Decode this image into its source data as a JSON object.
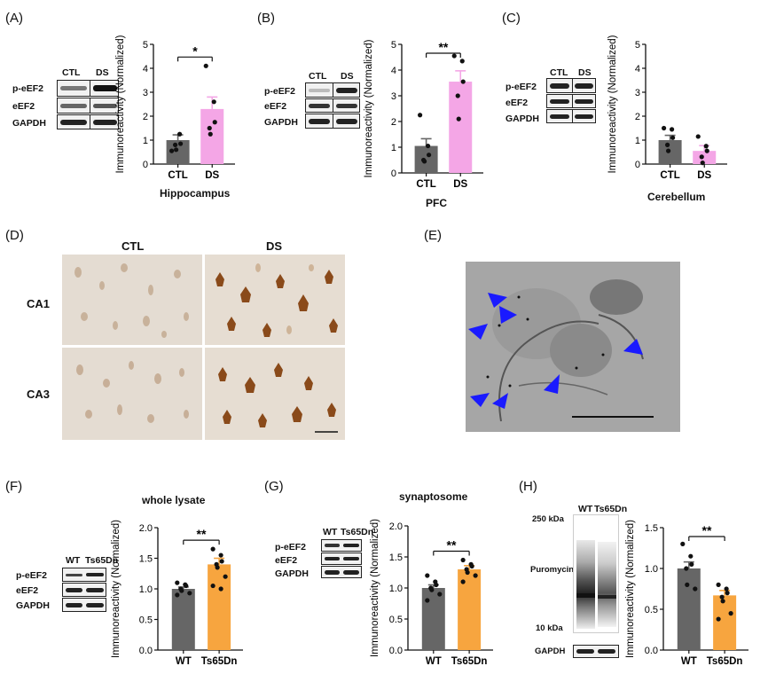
{
  "panels": {
    "A": {
      "label": "(A)",
      "subtitle": "Hippocampus",
      "blot_cols": [
        "CTL",
        "DS"
      ],
      "blot_rows": [
        "p-eEF2",
        "eEF2",
        "GAPDH"
      ]
    },
    "B": {
      "label": "(B)",
      "subtitle": "PFC",
      "blot_cols": [
        "CTL",
        "DS"
      ],
      "blot_rows": [
        "p-eEF2",
        "eEF2",
        "GAPDH"
      ]
    },
    "C": {
      "label": "(C)",
      "subtitle": "Cerebellum",
      "blot_cols": [
        "CTL",
        "DS"
      ],
      "blot_rows": [
        "p-eEF2",
        "eEF2",
        "GAPDH"
      ]
    },
    "D": {
      "label": "(D)",
      "col_labels": [
        "CTL",
        "DS"
      ],
      "row_labels": [
        "CA1",
        "CA3"
      ]
    },
    "E": {
      "label": "(E)"
    },
    "F": {
      "label": "(F)",
      "subtitle": "whole lysate",
      "blot_cols": [
        "WT",
        "Ts65Dn"
      ],
      "blot_rows": [
        "p-eEF2",
        "eEF2",
        "GAPDH"
      ]
    },
    "G": {
      "label": "(G)",
      "subtitle": "synaptosome",
      "blot_cols": [
        "WT",
        "Ts65Dn"
      ],
      "blot_rows": [
        "p-eEF2",
        "eEF2",
        "GAPDH"
      ]
    },
    "H": {
      "label": "(H)",
      "blot_cols": [
        "WT",
        "Ts65Dn"
      ],
      "marker_top": "250 kDa",
      "marker_bottom": "10 kDa",
      "lane_label": "Puromycin",
      "loading": "GAPDH"
    }
  },
  "colors": {
    "control": "#666666",
    "ds": "#f4a6e6",
    "ts": "#f7a53f",
    "arrow": "#1a1aff"
  },
  "chart_data": [
    {
      "panel": "A",
      "type": "bar",
      "ylabel": "Immunoreactivity (Normalized)",
      "categories": [
        "CTL",
        "DS"
      ],
      "values": [
        1.0,
        2.3
      ],
      "errors": [
        0.22,
        0.5
      ],
      "ylim": [
        0,
        5
      ],
      "yticks": [
        "0",
        "1",
        "2",
        "3",
        "4",
        "5"
      ],
      "points": [
        [
          0.55,
          1.25,
          0.85,
          0.8,
          0.6
        ],
        [
          4.1,
          2.6,
          1.75,
          1.5,
          1.25
        ]
      ],
      "significance": "*"
    },
    {
      "panel": "B",
      "type": "bar",
      "ylabel": "Immunoreactivity (Normalized)",
      "categories": [
        "CTL",
        "DS"
      ],
      "values": [
        1.05,
        3.55
      ],
      "errors": [
        0.28,
        0.42
      ],
      "ylim": [
        0,
        5
      ],
      "yticks": [
        "0",
        "1",
        "2",
        "3",
        "4",
        "5"
      ],
      "points": [
        [
          2.25,
          1.05,
          0.7,
          0.5,
          0.45
        ],
        [
          4.55,
          4.35,
          3.55,
          3.0,
          2.1
        ]
      ],
      "significance": "**"
    },
    {
      "panel": "C",
      "type": "bar",
      "ylabel": "Immunoreactivity (Normalized)",
      "categories": [
        "CTL",
        "DS"
      ],
      "values": [
        1.0,
        0.55
      ],
      "errors": [
        0.2,
        0.22
      ],
      "ylim": [
        0,
        5
      ],
      "yticks": [
        "0",
        "1",
        "2",
        "3",
        "4",
        "5"
      ],
      "points": [
        [
          1.5,
          1.45,
          1.1,
          0.8,
          0.55
        ],
        [
          1.15,
          0.75,
          0.55,
          0.3,
          0.05
        ]
      ],
      "significance": ""
    },
    {
      "panel": "F",
      "type": "bar",
      "ylabel": "Immunoreactivity (Normalized)",
      "categories": [
        "WT",
        "Ts65Dn"
      ],
      "values": [
        1.0,
        1.4
      ],
      "errors": [
        0.03,
        0.1
      ],
      "ylim": [
        0,
        2.0
      ],
      "yticks": [
        "0.0",
        "0.5",
        "1.0",
        "1.5",
        "2.0"
      ],
      "points": [
        [
          1.1,
          1.07,
          1.05,
          1.0,
          0.97,
          0.93,
          0.9
        ],
        [
          1.65,
          1.55,
          1.45,
          1.4,
          1.35,
          1.2,
          1.05,
          1.0
        ]
      ],
      "significance": "**"
    },
    {
      "panel": "G",
      "type": "bar",
      "ylabel": "Immunoreactivity (Normalized)",
      "categories": [
        "WT",
        "Ts65Dn"
      ],
      "values": [
        1.0,
        1.3
      ],
      "errors": [
        0.05,
        0.06
      ],
      "ylim": [
        0,
        2.0
      ],
      "yticks": [
        "0.0",
        "0.5",
        "1.0",
        "1.5",
        "2.0"
      ],
      "points": [
        [
          1.2,
          1.1,
          1.05,
          1.0,
          0.97,
          0.9,
          0.8
        ],
        [
          1.45,
          1.38,
          1.35,
          1.3,
          1.25,
          1.2,
          1.1
        ]
      ],
      "significance": "**"
    },
    {
      "panel": "H",
      "type": "bar",
      "ylabel": "Immunoreactivity (Normalized)",
      "categories": [
        "WT",
        "Ts65Dn"
      ],
      "values": [
        1.0,
        0.67
      ],
      "errors": [
        0.08,
        0.06
      ],
      "ylim": [
        0,
        1.5
      ],
      "yticks": [
        "0.0",
        "0.5",
        "1.0",
        "1.5"
      ],
      "points": [
        [
          1.3,
          1.15,
          1.05,
          1.0,
          0.8,
          0.75
        ],
        [
          0.8,
          0.75,
          0.7,
          0.65,
          0.6,
          0.45,
          0.38
        ]
      ],
      "significance": "**"
    }
  ]
}
